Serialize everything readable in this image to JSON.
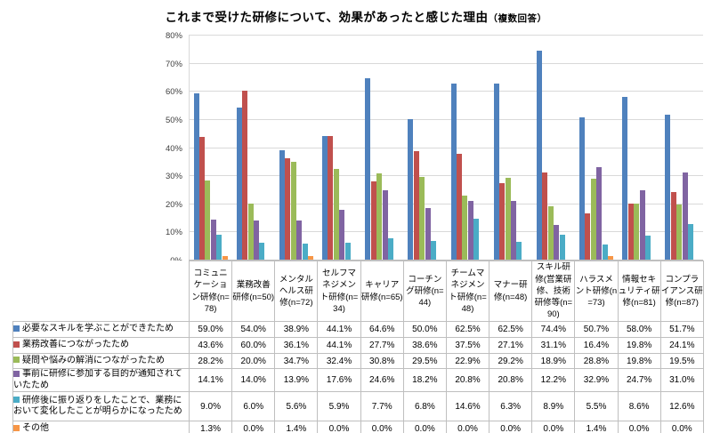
{
  "title": {
    "main": "これまで受けた研修について、効果があったと感じた理由",
    "note": "（複数回答）"
  },
  "chart_data": {
    "type": "bar",
    "title": "これまで受けた研修について、効果があったと感じた理由（複数回答）",
    "categories": [
      "コミュニケーション研修(n=78)",
      "業務改善研修(n=50)",
      "メンタルヘルス研修(n=72)",
      "セルフマネジメント研修(n=34)",
      "キャリア研修(n=65)",
      "コーチング研修(n=44)",
      "チームマネジメント研修(n=48)",
      "マナー研修(n=48)",
      "スキル研修(営業研修、技術研修等(n=90)",
      "ハラスメント研修(n=73)",
      "情報セキュリティ研修(n=81)",
      "コンプライアンス研修(n=87)"
    ],
    "series": [
      {
        "name": "必要なスキルを学ぶことができたため",
        "color": "#4F81BD",
        "values": [
          59.0,
          54.0,
          38.9,
          44.1,
          64.6,
          50.0,
          62.5,
          62.5,
          74.4,
          50.7,
          58.0,
          51.7
        ]
      },
      {
        "name": "業務改善につながったため",
        "color": "#C0504D",
        "values": [
          43.6,
          60.0,
          36.1,
          44.1,
          27.7,
          38.6,
          37.5,
          27.1,
          31.1,
          16.4,
          19.8,
          24.1
        ]
      },
      {
        "name": "疑問や悩みの解消につながったため",
        "color": "#9BBB59",
        "values": [
          28.2,
          20.0,
          34.7,
          32.4,
          30.8,
          29.5,
          22.9,
          29.2,
          18.9,
          28.8,
          19.8,
          19.5
        ]
      },
      {
        "name": "事前に研修に参加する目的が通知されていたため",
        "color": "#8064A2",
        "values": [
          14.1,
          14.0,
          13.9,
          17.6,
          24.6,
          18.2,
          20.8,
          20.8,
          12.2,
          32.9,
          24.7,
          31.0
        ]
      },
      {
        "name": "研修後に振り返りをしたことで、業務において変化したことが明らかになったため",
        "color": "#4BACC6",
        "values": [
          9.0,
          6.0,
          5.6,
          5.9,
          7.7,
          6.8,
          14.6,
          6.3,
          8.9,
          5.5,
          8.6,
          12.6
        ]
      },
      {
        "name": "その他",
        "color": "#F79646",
        "values": [
          1.3,
          0.0,
          1.4,
          0.0,
          0.0,
          0.0,
          0.0,
          0.0,
          0.0,
          1.4,
          0.0,
          0.0
        ]
      }
    ],
    "y_axis": {
      "min": 0,
      "max": 80,
      "step": 10,
      "unit": "%"
    },
    "grid": true,
    "legend_position": "table-left-column",
    "value_format": "percent-1dp",
    "colors": {
      "gridline": "#D9D9D9",
      "axis_line": "#BFBFBF",
      "table_border": "#BFBFBF",
      "background": "#FFFFFF"
    }
  }
}
